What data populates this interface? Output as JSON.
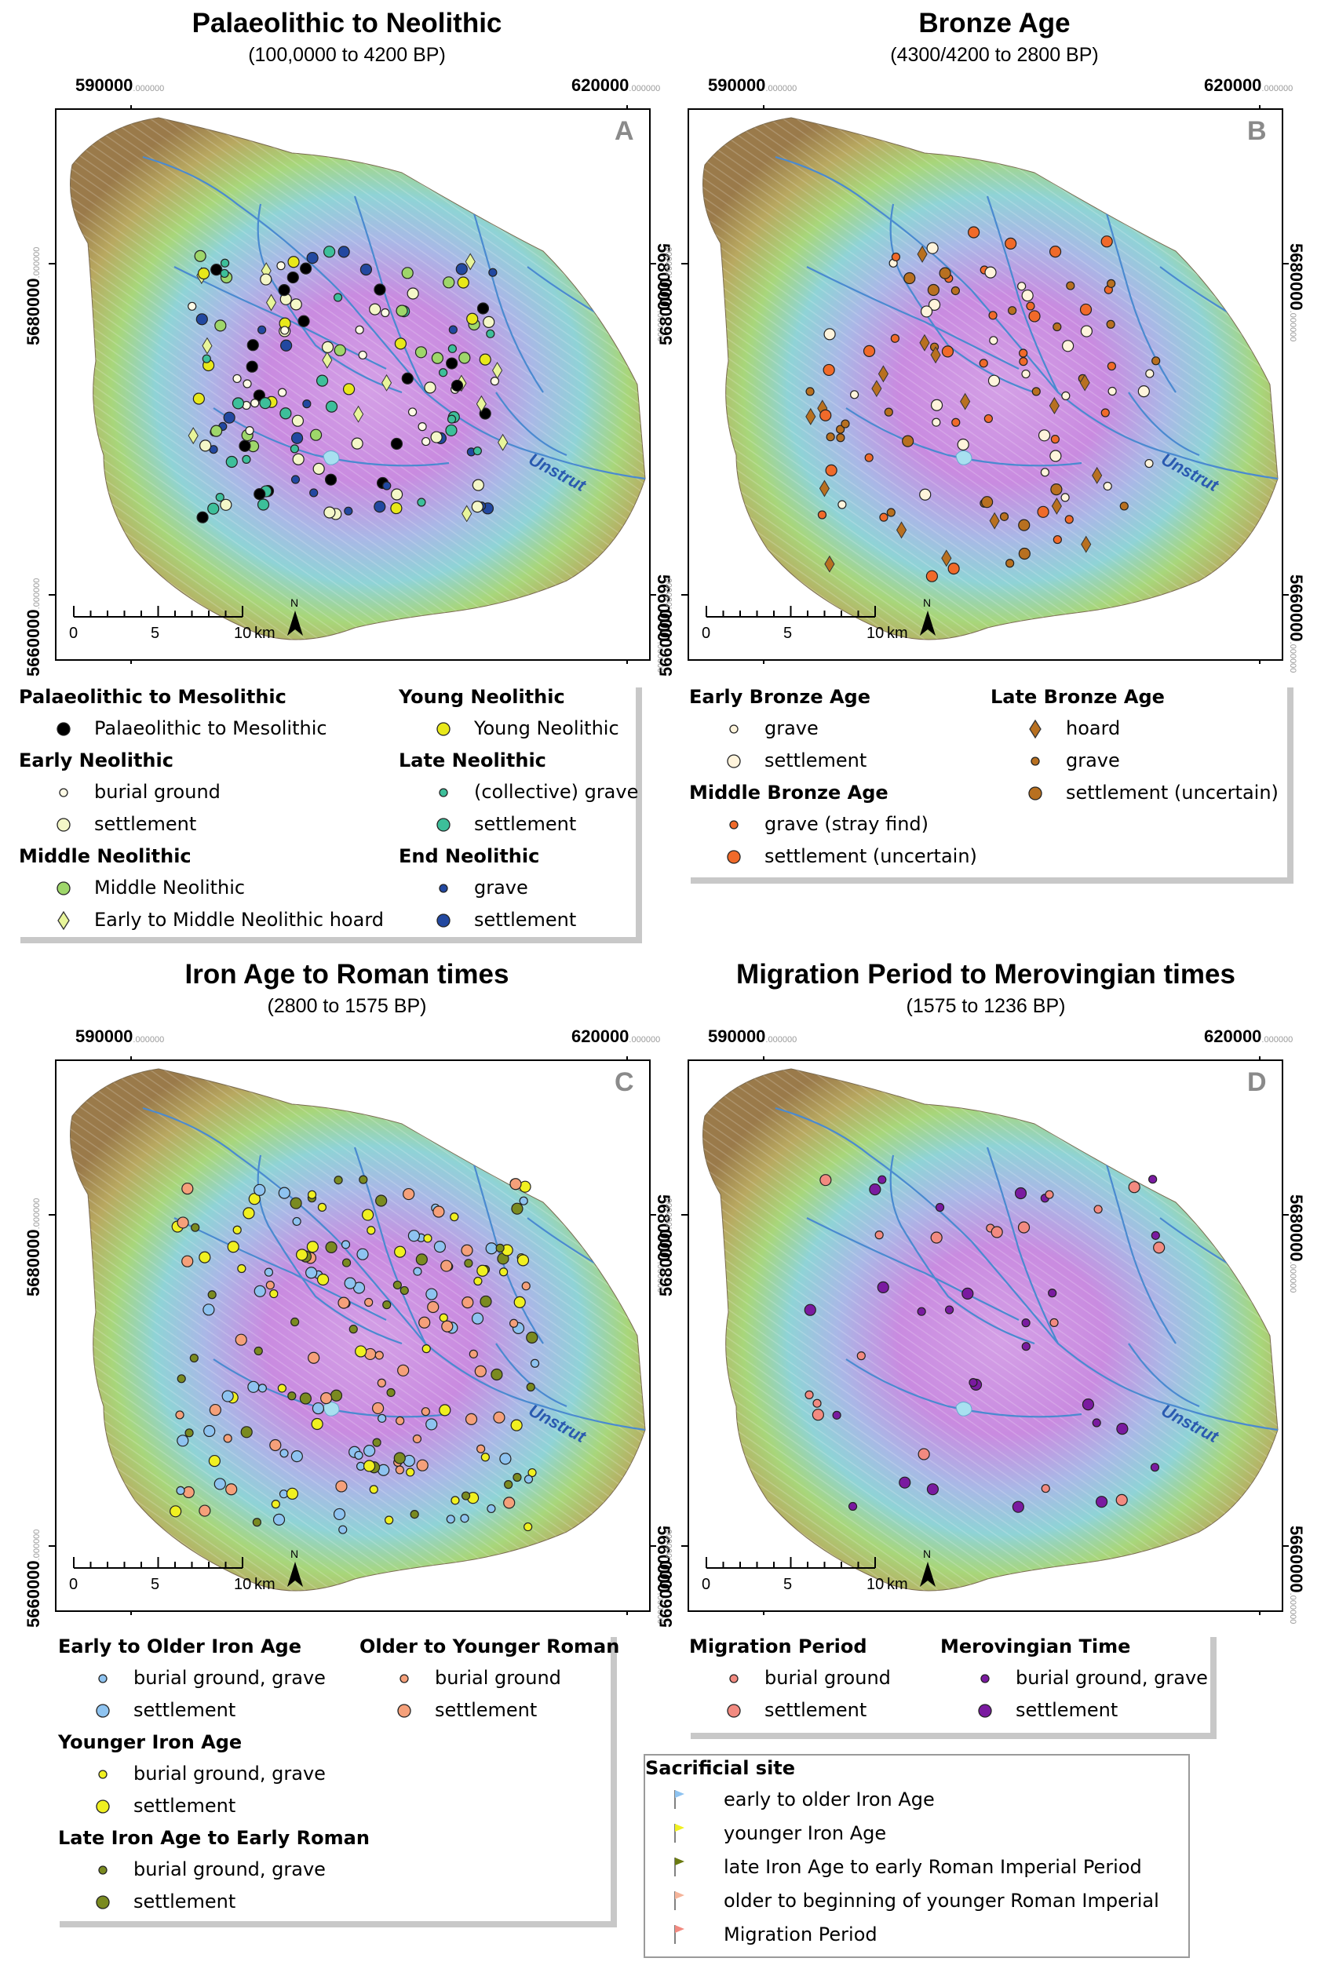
{
  "panels": [
    {
      "title": "Palaeolithic to Neolithic",
      "subtitle": "(100,0000 to 4200 BP)",
      "letter": "A",
      "coords": {
        "x1": "590000",
        "x2": "620000",
        "y1": "5680000",
        "y2": "5660000",
        "decimals": ".000000"
      },
      "river_label": "Unstrut",
      "scale": {
        "ticks": [
          "0",
          "5",
          "10"
        ],
        "unit": "km",
        "north": "N"
      }
    },
    {
      "title": "Bronze Age",
      "subtitle": "(4300/4200 to 2800 BP)",
      "letter": "B",
      "coords": {
        "x1": "590000",
        "x2": "620000",
        "y1": "5680000",
        "y2": "5660000",
        "decimals": ".000000"
      },
      "river_label": "Unstrut",
      "scale": {
        "ticks": [
          "0",
          "5",
          "10"
        ],
        "unit": "km",
        "north": "N"
      }
    },
    {
      "title": "Iron Age to Roman times",
      "subtitle": "(2800 to 1575 BP)",
      "letter": "C",
      "coords": {
        "x1": "590000",
        "x2": "620000",
        "y1": "5680000",
        "y2": "5660000",
        "decimals": ".000000"
      },
      "river_label": "Unstrut",
      "scale": {
        "ticks": [
          "0",
          "5",
          "10"
        ],
        "unit": "km",
        "north": "N"
      }
    },
    {
      "title": "Migration Period to Merovingian times",
      "subtitle": "(1575 to 1236 BP)",
      "letter": "D",
      "coords": {
        "x1": "590000",
        "x2": "620000",
        "y1": "5680000",
        "y2": "5660000",
        "decimals": ".000000"
      },
      "river_label": "Unstrut",
      "scale": {
        "ticks": [
          "0",
          "5",
          "10"
        ],
        "unit": "km",
        "north": "N"
      }
    }
  ],
  "legends": {
    "A": [
      {
        "head": "Palaeolithic to Mesolithic",
        "items": [
          {
            "label": "Palaeolithic to Mesolithic",
            "symbol": "dot-large",
            "color": "#000000"
          }
        ]
      },
      {
        "head": "Early Neolithic",
        "items": [
          {
            "label": "burial ground",
            "symbol": "dot-small",
            "color": "#fffbe6"
          },
          {
            "label": "settlement",
            "symbol": "dot-large",
            "color": "#f4f7c8"
          }
        ]
      },
      {
        "head": "Middle Neolithic",
        "items": [
          {
            "label": "Middle Neolithic",
            "symbol": "dot-large",
            "color": "#9ed66a"
          },
          {
            "label": "Early to Middle Neolithic hoard",
            "symbol": "diamond",
            "color": "#e8f59a"
          }
        ]
      },
      {
        "head": "Young Neolithic",
        "items": [
          {
            "label": "Young Neolithic",
            "symbol": "dot-large",
            "color": "#e8e81a"
          }
        ]
      },
      {
        "head": "Late Neolithic",
        "items": [
          {
            "label": "(collective) grave",
            "symbol": "dot-small",
            "color": "#3dbf9a"
          },
          {
            "label": "settlement",
            "symbol": "dot-large",
            "color": "#3dbf9a"
          }
        ]
      },
      {
        "head": "End Neolithic",
        "items": [
          {
            "label": "grave",
            "symbol": "dot-small",
            "color": "#2248a0"
          },
          {
            "label": "settlement",
            "symbol": "dot-large",
            "color": "#2248a0"
          }
        ]
      }
    ],
    "B": [
      {
        "head": "Early Bronze Age",
        "items": [
          {
            "label": "grave",
            "symbol": "dot-small",
            "color": "#fff4dc"
          },
          {
            "label": "settlement",
            "symbol": "dot-large",
            "color": "#fff4dc"
          }
        ]
      },
      {
        "head": "Middle Bronze Age",
        "items": [
          {
            "label": "grave (stray find)",
            "symbol": "dot-small",
            "color": "#f06a2a"
          },
          {
            "label": "settlement (uncertain)",
            "symbol": "dot-large",
            "color": "#f06a2a"
          }
        ]
      },
      {
        "head": "Late Bronze Age",
        "items": [
          {
            "label": "hoard",
            "symbol": "diamond",
            "color": "#b87020"
          },
          {
            "label": "grave",
            "symbol": "dot-small",
            "color": "#b87020"
          },
          {
            "label": "settlement (uncertain)",
            "symbol": "dot-large",
            "color": "#b87020"
          }
        ]
      }
    ],
    "C": [
      {
        "head": "Early to Older Iron Age",
        "items": [
          {
            "label": "burial ground, grave",
            "symbol": "dot-small",
            "color": "#8ec3f0"
          },
          {
            "label": "settlement",
            "symbol": "dot-large",
            "color": "#8ec3f0"
          }
        ]
      },
      {
        "head": "Younger Iron Age",
        "items": [
          {
            "label": "burial ground, grave",
            "symbol": "dot-small",
            "color": "#f0f020"
          },
          {
            "label": "settlement",
            "symbol": "dot-large",
            "color": "#f0f020"
          }
        ]
      },
      {
        "head": "Late Iron Age to Early Roman",
        "items": [
          {
            "label": "burial ground, grave",
            "symbol": "dot-small",
            "color": "#7a8a20"
          },
          {
            "label": "settlement",
            "symbol": "dot-large",
            "color": "#7a8a20"
          }
        ]
      },
      {
        "head": "Older to Younger Roman",
        "items": [
          {
            "label": "burial ground",
            "symbol": "dot-small",
            "color": "#f5a07a"
          },
          {
            "label": "settlement",
            "symbol": "dot-large",
            "color": "#f5a07a"
          }
        ]
      }
    ],
    "D": [
      {
        "head": "Migration Period",
        "items": [
          {
            "label": "burial ground",
            "symbol": "dot-small",
            "color": "#f28a80"
          },
          {
            "label": "settlement",
            "symbol": "dot-large",
            "color": "#f28a80"
          }
        ]
      },
      {
        "head": "Merovingian Time",
        "items": [
          {
            "label": "burial ground, grave",
            "symbol": "dot-small",
            "color": "#7a1aa0"
          },
          {
            "label": "settlement",
            "symbol": "dot-large",
            "color": "#7a1aa0"
          }
        ]
      }
    ],
    "sacrificial": {
      "head": "Sacrificial site",
      "items": [
        {
          "label": "early to older Iron Age",
          "color": "#8ec3f0"
        },
        {
          "label": "younger Iron Age",
          "color": "#f0f020"
        },
        {
          "label": "late Iron Age to early Roman Imperial Period",
          "color": "#6a7a10"
        },
        {
          "label": "older to beginning of younger Roman Imperial",
          "color": "#f5b49a"
        },
        {
          "label": "Migration Period",
          "color": "#f28a80"
        }
      ]
    }
  }
}
